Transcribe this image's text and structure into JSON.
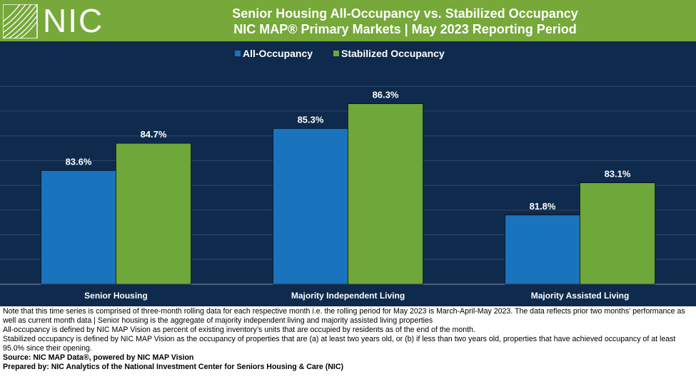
{
  "logo": {
    "text": "NIC"
  },
  "header": {
    "title_line1": "Senior Housing All-Occupancy vs. Stabilized Occupancy",
    "title_line2": "NIC MAP® Primary Markets | May 2023 Reporting Period"
  },
  "colors": {
    "header_bg": "#76a83a",
    "chart_bg": "#0e2a4d",
    "all_occupancy": "#1a73bd",
    "stabilized": "#6ea83a"
  },
  "chart_data": {
    "type": "bar",
    "categories": [
      "Senior Housing",
      "Majority Independent Living",
      "Majority Assisted Living"
    ],
    "series": [
      {
        "name": "All-Occupancy",
        "values": [
          83.6,
          85.3,
          81.8
        ],
        "labels": [
          "83.6%",
          "85.3%",
          "81.8%"
        ],
        "color": "#1a73bd"
      },
      {
        "name": "Stabilized Occupancy",
        "values": [
          84.7,
          86.3,
          83.1
        ],
        "labels": [
          "84.7%",
          "86.3%",
          "83.1%"
        ],
        "color": "#6ea83a"
      }
    ],
    "ylim": [
      79,
      87.5
    ],
    "grid": true,
    "legend": "top-center"
  },
  "notes": {
    "line1": "Note that this time series is comprised of three-month rolling data for each respective month i.e. the rolling period for May 2023 is March-April-May 2023. The data reflects prior two months' performance as well as current month data | Senior housing is the aggregate of majority independent living and majority assisted living properties",
    "line2": "All-occupancy is defined by NIC MAP Vision as percent of existing inventory’s units that are occupied by residents as of the end of the month.",
    "line3": "Stabilized occupancy is defined by NIC MAP Vision as the occupancy of properties that are (a) at least two years old, or (b) if less than two years old, properties that have achieved occupancy of at least 95.0% since their opening.",
    "source": "Source: NIC MAP Data®, powered by NIC MAP Vision",
    "prepared": "Prepared by: NIC Analytics of the National Investment Center for Seniors Housing & Care (NIC)"
  }
}
